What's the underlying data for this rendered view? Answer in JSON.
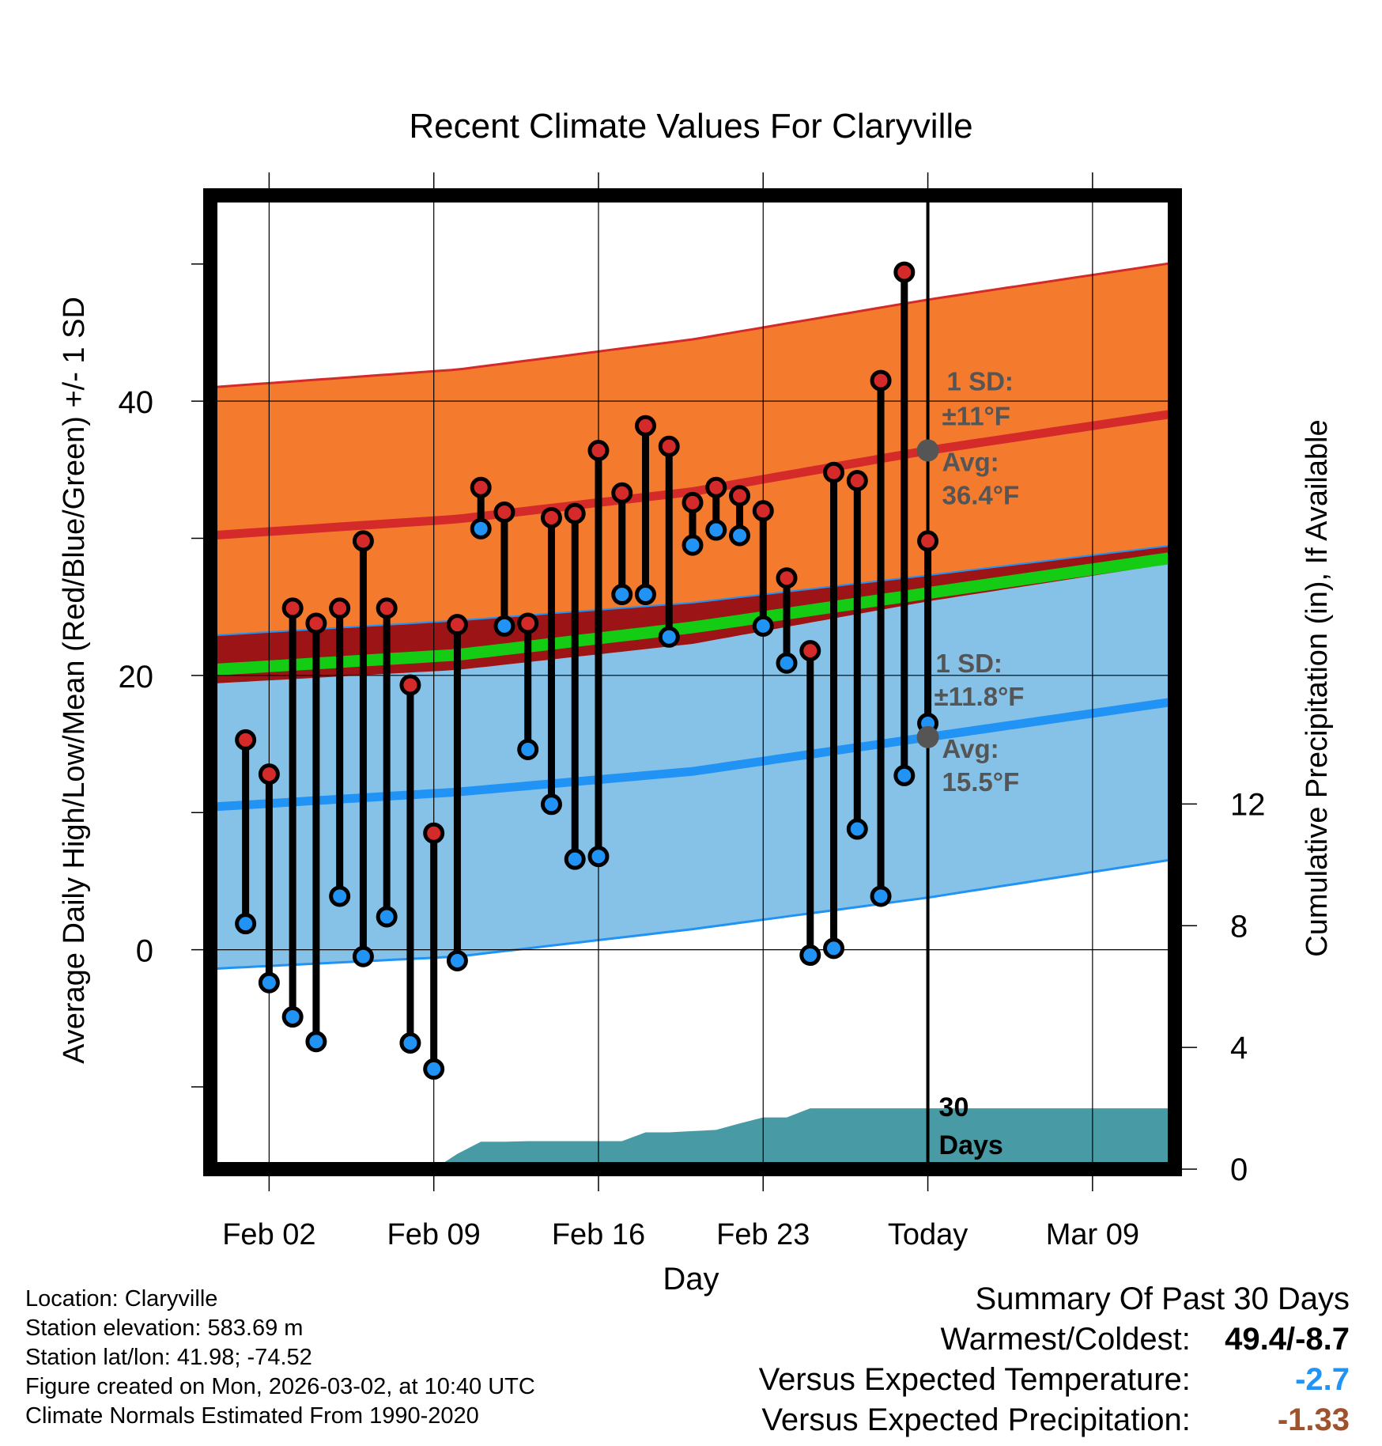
{
  "colors": {
    "high_band": "#f47a2e",
    "high_line": "#d42a2a",
    "low_band": "#86c2e8",
    "low_line": "#2193f5",
    "overlap_dark_red": "#9c1416",
    "mean_green": "#13cc13",
    "precip_fill": "#489aa5",
    "high_marker": "#d42a2a",
    "low_marker": "#2193f5",
    "annotation_gray": "#555555",
    "dep_temp": "#2193f5",
    "dep_precip": "#a0522d"
  },
  "chart_data": {
    "type": "line",
    "title": "Recent Climate Values For Claryville",
    "xlabel": "Day",
    "ylabel": "Average Daily High/Low/Mean (Red/Blue/Green) +/- 1 SD",
    "y2label": "Cumulative Precipitation (in), If Available",
    "x_tick_labels": [
      "Feb 02",
      "Feb 09",
      "Feb 16",
      "Feb 23",
      "Today",
      "Mar 09"
    ],
    "x_tick_positions": [
      2,
      9,
      16,
      23,
      30,
      37
    ],
    "xlim": [
      -0.5,
      40.5
    ],
    "ylim": [
      -16,
      55
    ],
    "y_ticks": [
      0,
      20,
      40
    ],
    "y_minor_ticks": [
      -10,
      10,
      30,
      50
    ],
    "y2lim": [
      0,
      32
    ],
    "y2_ticks": [
      0,
      4,
      8,
      12
    ],
    "today_x": 30,
    "normal_high": {
      "x": [
        -0.5,
        10,
        20,
        30,
        40.5
      ],
      "values": [
        30.2,
        31.4,
        33.4,
        36.4,
        39.1
      ]
    },
    "normal_high_plus_sd": {
      "x": [
        -0.5,
        10,
        20,
        30,
        40.5
      ],
      "values": [
        41.0,
        42.3,
        44.5,
        47.4,
        50.1
      ]
    },
    "normal_high_minus_sd": {
      "x": [
        -0.5,
        10,
        20,
        30,
        40.5
      ],
      "values": [
        19.4,
        20.4,
        22.3,
        25.4,
        28.2
      ]
    },
    "normal_low": {
      "x": [
        -0.5,
        10,
        20,
        30,
        40.5
      ],
      "values": [
        10.4,
        11.5,
        13.0,
        15.5,
        18.1
      ]
    },
    "normal_low_plus_sd": {
      "x": [
        -0.5,
        10,
        20,
        30,
        40.5
      ],
      "values": [
        22.9,
        24.0,
        25.3,
        27.3,
        29.5
      ]
    },
    "normal_low_minus_sd": {
      "x": [
        -0.5,
        10,
        20,
        30,
        40.5
      ],
      "values": [
        -1.4,
        -0.5,
        1.5,
        3.8,
        6.6
      ]
    },
    "normal_mean": {
      "x": [
        -0.5,
        10,
        20,
        30,
        40.5
      ],
      "values": [
        20.4,
        21.5,
        23.5,
        26.0,
        28.6
      ]
    },
    "daily": {
      "x": [
        1,
        2,
        3,
        4,
        5,
        6,
        7,
        8,
        9,
        10,
        11,
        12,
        13,
        14,
        15,
        16,
        17,
        18,
        19,
        20,
        21,
        22,
        23,
        24,
        25,
        26,
        27,
        28,
        29
      ],
      "high": [
        15.3,
        12.8,
        24.9,
        23.8,
        24.9,
        29.8,
        24.9,
        19.3,
        8.5,
        23.7,
        33.7,
        31.9,
        23.8,
        31.5,
        31.8,
        36.4,
        33.3,
        38.2,
        36.7,
        32.6,
        33.7,
        33.1,
        32.0,
        27.1,
        21.8,
        34.8,
        34.2,
        41.5,
        49.4
      ],
      "low": [
        1.9,
        -2.4,
        -4.9,
        -6.7,
        3.9,
        -0.5,
        2.4,
        -6.8,
        -8.7,
        -0.8,
        30.7,
        23.6,
        14.6,
        10.6,
        6.6,
        6.8,
        25.9,
        25.9,
        22.8,
        29.5,
        30.6,
        30.2,
        23.6,
        20.9,
        -0.4,
        0.1,
        8.8,
        3.9,
        12.7
      ]
    },
    "daily_extra": {
      "x": 30,
      "high": 29.8,
      "low": 16.5
    },
    "precip_cumulative": {
      "x": [
        -0.5,
        9,
        10,
        11,
        12,
        13,
        14,
        15,
        16,
        17,
        18,
        19,
        20,
        21,
        22,
        23,
        24,
        25,
        26,
        27,
        28,
        29,
        30,
        40.5
      ],
      "values": [
        0,
        0,
        0.5,
        0.9,
        0.9,
        0.92,
        0.92,
        0.92,
        0.92,
        0.92,
        1.21,
        1.21,
        1.25,
        1.29,
        1.5,
        1.7,
        1.7,
        2.0,
        2.0,
        2.0,
        2.0,
        2.0,
        2.0,
        2.0
      ]
    },
    "annotations": {
      "high_sd_title": "1 SD:",
      "high_sd_value": "±11°F",
      "high_avg_title": "Avg:",
      "high_avg_value": "36.4°F",
      "high_avg": 36.4,
      "low_sd_title": "1 SD:",
      "low_sd_value": "±11.8°F",
      "low_avg_title": "Avg:",
      "low_avg_value": "15.5°F",
      "low_avg": 15.5,
      "precip_days_line1": "30",
      "precip_days_line2": "Days"
    }
  },
  "info": {
    "location": "Location: Claryville",
    "elevation": "Station elevation: 583.69 m",
    "latlon": "Station lat/lon: 41.98; -74.52",
    "created": "Figure created on Mon, 2026-03-02, at 10:40 UTC",
    "normals": "Climate Normals Estimated From 1990-2020"
  },
  "summary": {
    "title": "Summary Of Past 30 Days",
    "warm_cold_label": "Warmest/Coldest:",
    "warm_cold_value": "49.4/-8.7",
    "temp_label": "Versus Expected Temperature:",
    "temp_value": "-2.7",
    "precip_label": "Versus Expected Precipitation:",
    "precip_value": "-1.33"
  }
}
